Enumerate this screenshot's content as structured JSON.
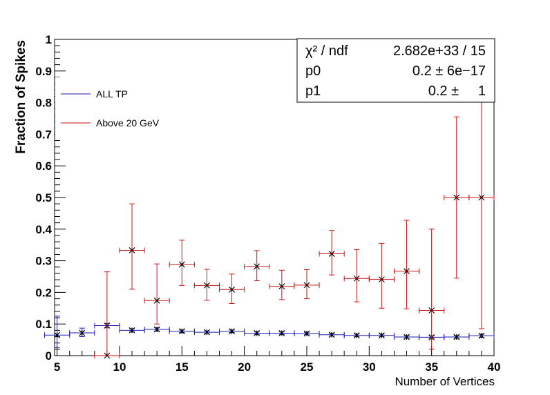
{
  "chart_data": {
    "type": "scatter",
    "xlabel": "Number of Vertices",
    "ylabel": "Fraction of Spikes",
    "xlim": [
      4.8,
      40
    ],
    "ylim": [
      0,
      1
    ],
    "x_ticks": [
      "5",
      "10",
      "15",
      "20",
      "25",
      "30",
      "35",
      "40"
    ],
    "y_ticks": [
      "0",
      "0.1",
      "0.2",
      "0.3",
      "0.4",
      "0.5",
      "0.6",
      "0.7",
      "0.8",
      "0.9",
      "1"
    ],
    "legend": {
      "placement": "top-left"
    },
    "series": [
      {
        "name": "ALL TP",
        "color": "#1a1ab4",
        "marker": "star",
        "points": [
          {
            "x": 5,
            "y": 0.065,
            "xerr": 1,
            "ylo": 0.025,
            "yhi": 0.125
          },
          {
            "x": 7,
            "y": 0.072,
            "xerr": 1,
            "ylo": 0.06,
            "yhi": 0.087
          },
          {
            "x": 9,
            "y": 0.095,
            "xerr": 1,
            "ylo": 0.088,
            "yhi": 0.102
          },
          {
            "x": 11,
            "y": 0.08,
            "xerr": 1,
            "ylo": 0.075,
            "yhi": 0.085
          },
          {
            "x": 13,
            "y": 0.083,
            "xerr": 1,
            "ylo": 0.078,
            "yhi": 0.088
          },
          {
            "x": 15,
            "y": 0.077,
            "xerr": 1,
            "ylo": 0.073,
            "yhi": 0.081
          },
          {
            "x": 17,
            "y": 0.074,
            "xerr": 1,
            "ylo": 0.07,
            "yhi": 0.078
          },
          {
            "x": 19,
            "y": 0.077,
            "xerr": 1,
            "ylo": 0.073,
            "yhi": 0.081
          },
          {
            "x": 21,
            "y": 0.071,
            "xerr": 1,
            "ylo": 0.067,
            "yhi": 0.075
          },
          {
            "x": 23,
            "y": 0.071,
            "xerr": 1,
            "ylo": 0.067,
            "yhi": 0.075
          },
          {
            "x": 25,
            "y": 0.07,
            "xerr": 1,
            "ylo": 0.066,
            "yhi": 0.074
          },
          {
            "x": 27,
            "y": 0.066,
            "xerr": 1,
            "ylo": 0.062,
            "yhi": 0.07
          },
          {
            "x": 29,
            "y": 0.064,
            "xerr": 1,
            "ylo": 0.06,
            "yhi": 0.068
          },
          {
            "x": 31,
            "y": 0.064,
            "xerr": 1,
            "ylo": 0.06,
            "yhi": 0.068
          },
          {
            "x": 33,
            "y": 0.059,
            "xerr": 1,
            "ylo": 0.055,
            "yhi": 0.063
          },
          {
            "x": 35,
            "y": 0.058,
            "xerr": 1,
            "ylo": 0.054,
            "yhi": 0.062
          },
          {
            "x": 37,
            "y": 0.059,
            "xerr": 1,
            "ylo": 0.055,
            "yhi": 0.063
          },
          {
            "x": 39,
            "y": 0.063,
            "xerr": 1,
            "ylo": 0.058,
            "yhi": 0.068
          }
        ]
      },
      {
        "name": "Above 20 GeV",
        "color": "#cc1111",
        "marker": "x",
        "points": [
          {
            "x": 9,
            "y": 0.0,
            "xerr": 1,
            "ylo": 0.0,
            "yhi": 0.265
          },
          {
            "x": 11,
            "y": 0.333,
            "xerr": 1,
            "ylo": 0.21,
            "yhi": 0.48
          },
          {
            "x": 13,
            "y": 0.174,
            "xerr": 1,
            "ylo": 0.1,
            "yhi": 0.29
          },
          {
            "x": 15,
            "y": 0.288,
            "xerr": 1,
            "ylo": 0.222,
            "yhi": 0.365
          },
          {
            "x": 17,
            "y": 0.222,
            "xerr": 1,
            "ylo": 0.175,
            "yhi": 0.273
          },
          {
            "x": 19,
            "y": 0.209,
            "xerr": 1,
            "ylo": 0.165,
            "yhi": 0.258
          },
          {
            "x": 21,
            "y": 0.282,
            "xerr": 1,
            "ylo": 0.237,
            "yhi": 0.332
          },
          {
            "x": 23,
            "y": 0.219,
            "xerr": 1,
            "ylo": 0.177,
            "yhi": 0.27
          },
          {
            "x": 25,
            "y": 0.223,
            "xerr": 1,
            "ylo": 0.18,
            "yhi": 0.272
          },
          {
            "x": 27,
            "y": 0.322,
            "xerr": 1,
            "ylo": 0.255,
            "yhi": 0.396
          },
          {
            "x": 29,
            "y": 0.244,
            "xerr": 1,
            "ylo": 0.17,
            "yhi": 0.335
          },
          {
            "x": 31,
            "y": 0.241,
            "xerr": 1,
            "ylo": 0.15,
            "yhi": 0.355
          },
          {
            "x": 33,
            "y": 0.267,
            "xerr": 1,
            "ylo": 0.148,
            "yhi": 0.428
          },
          {
            "x": 35,
            "y": 0.143,
            "xerr": 1,
            "ylo": 0.02,
            "yhi": 0.4
          },
          {
            "x": 37,
            "y": 0.5,
            "xerr": 1,
            "ylo": 0.245,
            "yhi": 0.755
          },
          {
            "x": 39,
            "y": 0.5,
            "xerr": 1,
            "ylo": 0.085,
            "yhi": 0.915
          }
        ]
      }
    ],
    "fit_box": {
      "rows": [
        {
          "label": "χ² / ndf",
          "value": "2.682e+33 / 15"
        },
        {
          "label": "p0",
          "value": "0.2 ± 6e−17"
        },
        {
          "label": "p1",
          "value": "0.2 ±     1"
        }
      ]
    }
  }
}
